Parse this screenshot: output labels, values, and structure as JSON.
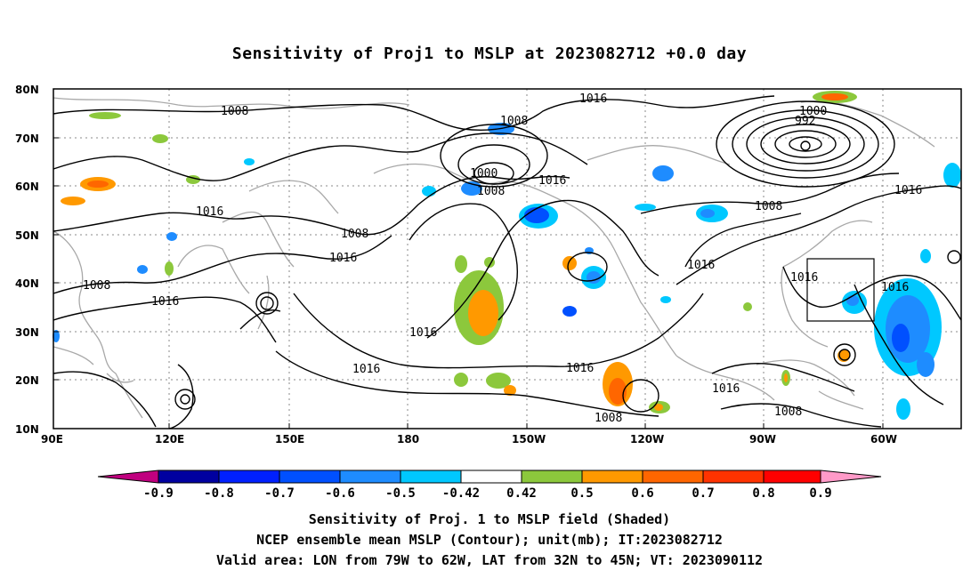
{
  "title": "Sensitivity of Proj1 to MSLP at 2023082712 +0.0 day",
  "map": {
    "lat_labels": [
      "80N",
      "70N",
      "60N",
      "50N",
      "40N",
      "30N",
      "20N",
      "10N"
    ],
    "lon_labels": [
      "90E",
      "120E",
      "150E",
      "180",
      "150W",
      "120W",
      "90W",
      "60W"
    ],
    "contour_labels": [
      "1008",
      "1016",
      "1008",
      "1000",
      "1008",
      "1016",
      "1016",
      "1000",
      "992",
      "1016",
      "1008",
      "1016",
      "1008",
      "1016",
      "1008",
      "1016",
      "1016",
      "1016",
      "1016",
      "1016",
      "1016",
      "1016",
      "1008",
      "1008"
    ],
    "valid_box": {
      "lon_from": "79W",
      "lon_to": "62W",
      "lat_from": "32N",
      "lat_to": "45N"
    },
    "contour_color": "#000000",
    "coastline_color": "#a0a0a0",
    "grid_color": "#888888"
  },
  "colorbar": {
    "labels": [
      "-0.9",
      "-0.8",
      "-0.7",
      "-0.6",
      "-0.5",
      "-0.42",
      "0.42",
      "0.5",
      "0.6",
      "0.7",
      "0.8",
      "0.9"
    ],
    "colors": [
      "#c0007f",
      "#0000a0",
      "#0020ff",
      "#0050ff",
      "#1e8cff",
      "#00c8ff",
      "#ffffff",
      "#8cc83c",
      "#ff9900",
      "#ff6600",
      "#ff3300",
      "#ff0000",
      "#ff9ac8"
    ]
  },
  "captions": {
    "line1": "Sensitivity of Proj. 1 to MSLP field (Shaded)",
    "line2": "NCEP ensemble mean MSLP (Contour); unit(mb); IT:2023082712",
    "line3": "Valid area: LON from 79W to 62W, LAT from 32N to 45N; VT: 2023090112"
  }
}
